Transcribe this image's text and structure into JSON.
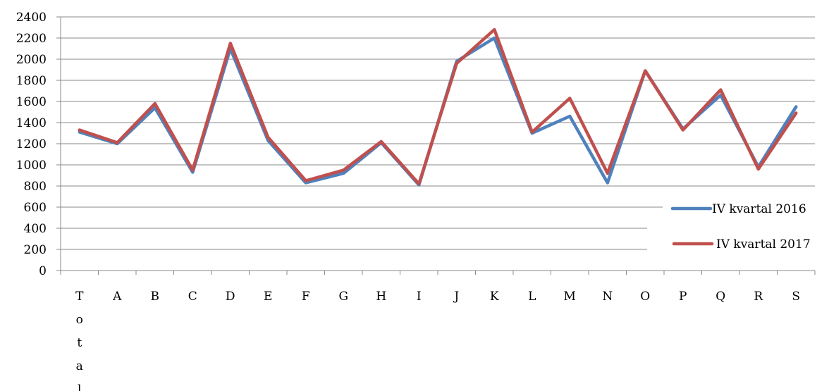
{
  "chart_data": {
    "type": "line",
    "title": "",
    "xlabel": "",
    "ylabel": "",
    "categories": [
      "Total",
      "A",
      "B",
      "C",
      "D",
      "E",
      "F",
      "G",
      "H",
      "I",
      "J",
      "K",
      "L",
      "M",
      "N",
      "O",
      "P",
      "Q",
      "R",
      "S"
    ],
    "ylim": [
      0,
      2400
    ],
    "yticks": [
      0,
      200,
      400,
      600,
      800,
      1000,
      1200,
      1400,
      1600,
      1800,
      2000,
      2200,
      2400
    ],
    "grid": true,
    "legend_position": "right",
    "series": [
      {
        "name": "IV kvartal 2016",
        "color": "#4F81BD",
        "values": [
          1310,
          1200,
          1540,
          930,
          2100,
          1230,
          830,
          920,
          1210,
          810,
          1980,
          2200,
          1300,
          1460,
          830,
          1890,
          1340,
          1660,
          980,
          1550
        ]
      },
      {
        "name": "IV kvartal 2017",
        "color": "#C0504D",
        "values": [
          1330,
          1210,
          1580,
          950,
          2150,
          1260,
          850,
          950,
          1220,
          820,
          1960,
          2280,
          1310,
          1630,
          920,
          1890,
          1330,
          1710,
          960,
          1490
        ]
      }
    ]
  }
}
